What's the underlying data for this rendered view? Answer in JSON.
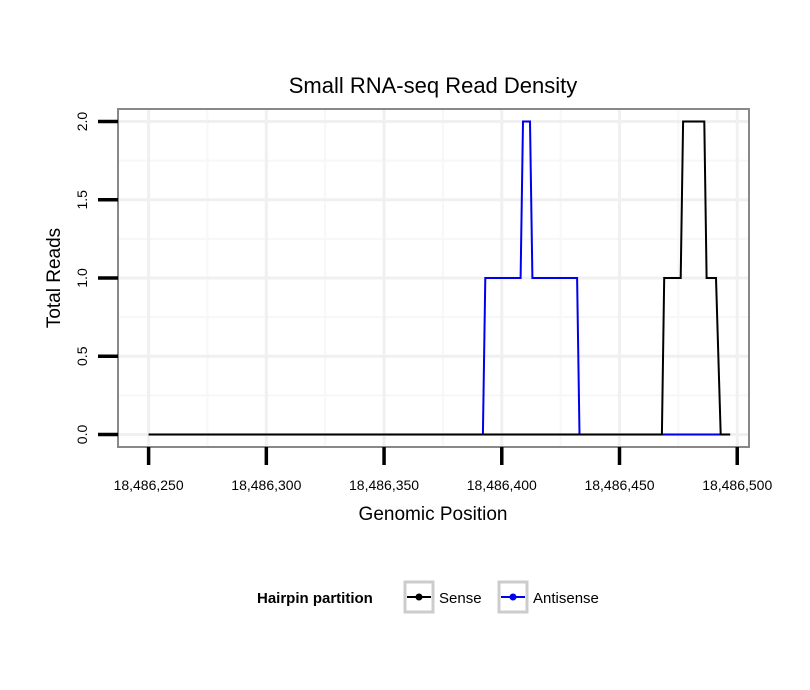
{
  "chart_data": {
    "type": "line",
    "title": "Small RNA-seq Read Density",
    "xlabel": "Genomic Position",
    "ylabel": "Total Reads",
    "xlim": [
      18486237,
      18486505
    ],
    "ylim": [
      -0.08,
      2.08
    ],
    "x_ticks": [
      {
        "value": 18486250,
        "label": "18,486,250"
      },
      {
        "value": 18486300,
        "label": "18,486,300"
      },
      {
        "value": 18486350,
        "label": "18,486,350"
      },
      {
        "value": 18486400,
        "label": "18,486,400"
      },
      {
        "value": 18486450,
        "label": "18,486,450"
      },
      {
        "value": 18486500,
        "label": "18,486,500"
      }
    ],
    "y_ticks": [
      {
        "value": 0,
        "label": "0.0"
      },
      {
        "value": 0.5,
        "label": "0.5"
      },
      {
        "value": 1,
        "label": "1.0"
      },
      {
        "value": 1.5,
        "label": "1.5"
      },
      {
        "value": 2,
        "label": "2.0"
      }
    ],
    "grid": true,
    "series": [
      {
        "name": "Sense",
        "color": "#000000",
        "x": [
          18486250,
          18486468,
          18486469,
          18486476,
          18486477,
          18486486,
          18486487,
          18486491,
          18486493,
          18486497
        ],
        "y": [
          0,
          0,
          1,
          1,
          2,
          2,
          1,
          1,
          0,
          0
        ]
      },
      {
        "name": "Antisense",
        "color": "#0000ee",
        "x": [
          18486250,
          18486392,
          18486393,
          18486408,
          18486409,
          18486412,
          18486413,
          18486432,
          18486433,
          18486495
        ],
        "y": [
          0,
          0,
          1,
          1,
          2,
          2,
          1,
          1,
          0,
          0
        ]
      }
    ],
    "legend": {
      "title": "Hairpin partition",
      "position": "bottom",
      "entries": [
        {
          "label": "Sense",
          "color": "#000000"
        },
        {
          "label": "Antisense",
          "color": "#0000ee"
        }
      ]
    }
  }
}
